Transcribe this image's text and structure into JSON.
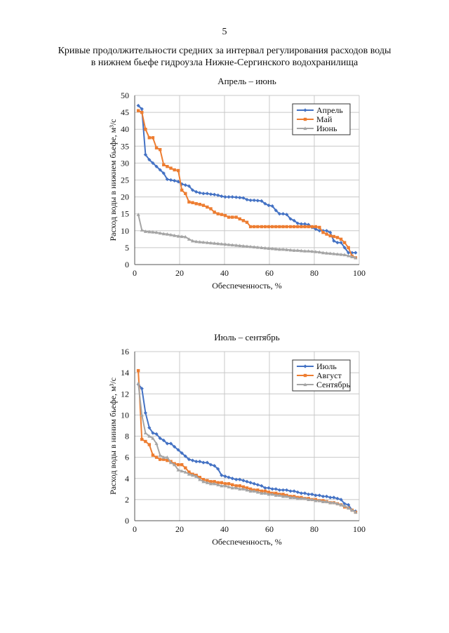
{
  "page": {
    "number": "5",
    "heading_line1": "Кривые продолжительности средних за интервал регулирования расходов воды",
    "heading_line2": "в нижнем бьефе гидроузла Нижне-Сергинского водохранилища"
  },
  "colors": {
    "blue": "#4472C4",
    "orange": "#ED7D31",
    "gray": "#A5A5A5",
    "grid": "#C8C8C8"
  },
  "chart_data": [
    {
      "type": "line",
      "title": "Апрель – июнь",
      "xlabel": "Обеспеченность, %",
      "ylabel": "Расход воды в нижнем бьефе, м³/с",
      "xlim": [
        0,
        100
      ],
      "ylim": [
        0,
        50
      ],
      "xticks": [
        "0",
        "20",
        "40",
        "60",
        "80",
        "100"
      ],
      "yticks": [
        "0",
        "5",
        "10",
        "15",
        "20",
        "25",
        "30",
        "35",
        "40",
        "45",
        "50"
      ],
      "grid": true,
      "legend_position": "top-right",
      "series": [
        {
          "name": "Апрель",
          "color": "#4472C4",
          "marker": "diamond",
          "x": [
            1.6,
            3.2,
            4.8,
            6.5,
            8.1,
            9.7,
            11.3,
            12.9,
            14.5,
            16.1,
            17.7,
            19.4,
            21.0,
            22.6,
            24.2,
            25.8,
            27.4,
            29.0,
            30.6,
            32.3,
            33.9,
            35.5,
            37.1,
            38.7,
            40.3,
            41.9,
            43.5,
            45.2,
            46.8,
            48.4,
            50.0,
            51.6,
            53.2,
            54.8,
            56.5,
            58.1,
            59.7,
            61.3,
            62.9,
            64.5,
            66.1,
            67.7,
            69.4,
            71.0,
            72.6,
            74.2,
            75.8,
            77.4,
            79.0,
            80.6,
            82.3,
            83.9,
            85.5,
            87.1,
            88.7,
            90.3,
            91.9,
            93.5,
            95.2,
            96.8,
            98.4
          ],
          "y": [
            47,
            46,
            32.5,
            31,
            30,
            29,
            28,
            27,
            25.2,
            25,
            24.8,
            24.5,
            23.8,
            23.5,
            23.2,
            22,
            21.5,
            21.2,
            21.0,
            21.0,
            20.8,
            20.7,
            20.5,
            20.2,
            20.0,
            20.0,
            20.0,
            19.9,
            19.8,
            19.7,
            19.2,
            19.0,
            19.0,
            18.9,
            18.8,
            18.0,
            17.5,
            17.3,
            16.0,
            15.0,
            15.0,
            14.8,
            13.5,
            13.0,
            12.2,
            12.0,
            12.0,
            11.8,
            11.0,
            10.5,
            10.0,
            10.0,
            10.0,
            9.5,
            7.0,
            6.5,
            6.5,
            5.0,
            3.5,
            3.5,
            3.5
          ]
        },
        {
          "name": "Май",
          "color": "#ED7D31",
          "marker": "square",
          "x": [
            1.6,
            3.2,
            4.8,
            6.5,
            8.1,
            9.7,
            11.3,
            12.9,
            14.5,
            16.1,
            17.7,
            19.4,
            21.0,
            22.6,
            24.2,
            25.8,
            27.4,
            29.0,
            30.6,
            32.3,
            33.9,
            35.5,
            37.1,
            38.7,
            40.3,
            41.9,
            43.5,
            45.2,
            46.8,
            48.4,
            50.0,
            51.6,
            53.2,
            54.8,
            56.5,
            58.1,
            59.7,
            61.3,
            62.9,
            64.5,
            66.1,
            67.7,
            69.4,
            71.0,
            72.6,
            74.2,
            75.8,
            77.4,
            79.0,
            80.6,
            82.3,
            83.9,
            85.5,
            87.1,
            88.7,
            90.3,
            91.9,
            93.5,
            95.2,
            96.8,
            98.4
          ],
          "y": [
            45.5,
            45,
            40,
            37.5,
            37.5,
            34.5,
            34.0,
            29.5,
            29.0,
            28.5,
            28.0,
            27.8,
            22,
            21,
            18.5,
            18.3,
            18.0,
            17.8,
            17.5,
            17.0,
            16.5,
            15.5,
            15.0,
            14.8,
            14.5,
            14.0,
            14.0,
            14.0,
            13.5,
            13.0,
            12.5,
            11.2,
            11.2,
            11.2,
            11.2,
            11.2,
            11.2,
            11.2,
            11.2,
            11.2,
            11.2,
            11.2,
            11.2,
            11.2,
            11.2,
            11.2,
            11.2,
            11.2,
            11.2,
            11.2,
            11.0,
            9.5,
            9.0,
            8.5,
            8.3,
            8.0,
            7.5,
            6.5,
            5.0,
            2.5,
            2.0
          ]
        },
        {
          "name": "Июнь",
          "color": "#A5A5A5",
          "marker": "triangle",
          "x": [
            1.6,
            3.2,
            4.8,
            6.5,
            8.1,
            9.7,
            11.3,
            12.9,
            14.5,
            16.1,
            17.7,
            19.4,
            21.0,
            22.6,
            24.2,
            25.8,
            27.4,
            29.0,
            30.6,
            32.3,
            33.9,
            35.5,
            37.1,
            38.7,
            40.3,
            41.9,
            43.5,
            45.2,
            46.8,
            48.4,
            50.0,
            51.6,
            53.2,
            54.8,
            56.5,
            58.1,
            59.7,
            61.3,
            62.9,
            64.5,
            66.1,
            67.7,
            69.4,
            71.0,
            72.6,
            74.2,
            75.8,
            77.4,
            79.0,
            80.6,
            82.3,
            83.9,
            85.5,
            87.1,
            88.7,
            90.3,
            91.9,
            93.5,
            95.2,
            96.8,
            98.4
          ],
          "y": [
            14.8,
            10.2,
            9.8,
            9.7,
            9.6,
            9.5,
            9.3,
            9.1,
            9.0,
            8.8,
            8.6,
            8.4,
            8.3,
            8.2,
            7.5,
            7.0,
            6.8,
            6.7,
            6.6,
            6.5,
            6.4,
            6.3,
            6.2,
            6.1,
            6.0,
            5.9,
            5.8,
            5.7,
            5.6,
            5.5,
            5.4,
            5.3,
            5.2,
            5.1,
            5.0,
            4.9,
            4.8,
            4.7,
            4.6,
            4.5,
            4.5,
            4.4,
            4.3,
            4.2,
            4.2,
            4.1,
            4.0,
            4.0,
            3.9,
            3.8,
            3.7,
            3.5,
            3.4,
            3.3,
            3.2,
            3.1,
            3.0,
            2.9,
            2.6,
            2.3,
            2.0
          ]
        }
      ]
    },
    {
      "type": "line",
      "title": "Июль – сентябрь",
      "xlabel": "Обеспеченность, %",
      "ylabel": "Расход воды в ниним бьефе, м³/с",
      "xlim": [
        0,
        100
      ],
      "ylim": [
        0,
        16
      ],
      "xticks": [
        "0",
        "20",
        "40",
        "60",
        "80",
        "100"
      ],
      "yticks": [
        "0",
        "2",
        "4",
        "6",
        "8",
        "10",
        "12",
        "14",
        "16"
      ],
      "grid": true,
      "legend_position": "top-right",
      "series": [
        {
          "name": "Июль",
          "color": "#4472C4",
          "marker": "diamond",
          "x": [
            1.6,
            3.2,
            4.8,
            6.5,
            8.1,
            9.7,
            11.3,
            12.9,
            14.5,
            16.1,
            17.7,
            19.4,
            21.0,
            22.6,
            24.2,
            25.8,
            27.4,
            29.0,
            30.6,
            32.3,
            33.9,
            35.5,
            37.1,
            38.7,
            40.3,
            41.9,
            43.5,
            45.2,
            46.8,
            48.4,
            50.0,
            51.6,
            53.2,
            54.8,
            56.5,
            58.1,
            59.7,
            61.3,
            62.9,
            64.5,
            66.1,
            67.7,
            69.4,
            71.0,
            72.6,
            74.2,
            75.8,
            77.4,
            79.0,
            80.6,
            82.3,
            83.9,
            85.5,
            87.1,
            88.7,
            90.3,
            91.9,
            93.5,
            95.2,
            96.8,
            98.4
          ],
          "y": [
            12.9,
            12.5,
            10.2,
            8.8,
            8.3,
            8.2,
            7.8,
            7.6,
            7.3,
            7.3,
            7.0,
            6.7,
            6.4,
            6.1,
            5.8,
            5.7,
            5.6,
            5.6,
            5.5,
            5.5,
            5.3,
            5.2,
            4.9,
            4.3,
            4.2,
            4.1,
            4.0,
            3.9,
            3.9,
            3.8,
            3.7,
            3.6,
            3.5,
            3.4,
            3.3,
            3.1,
            3.1,
            3.0,
            3.0,
            2.9,
            2.9,
            2.9,
            2.8,
            2.8,
            2.7,
            2.6,
            2.6,
            2.5,
            2.5,
            2.4,
            2.4,
            2.3,
            2.3,
            2.2,
            2.2,
            2.1,
            2.0,
            1.6,
            1.5,
            1.0,
            0.9
          ]
        },
        {
          "name": "Август",
          "color": "#ED7D31",
          "marker": "square",
          "x": [
            1.6,
            3.2,
            4.8,
            6.5,
            8.1,
            9.7,
            11.3,
            12.9,
            14.5,
            16.1,
            17.7,
            19.4,
            21.0,
            22.6,
            24.2,
            25.8,
            27.4,
            29.0,
            30.6,
            32.3,
            33.9,
            35.5,
            37.1,
            38.7,
            40.3,
            41.9,
            43.5,
            45.2,
            46.8,
            48.4,
            50.0,
            51.6,
            53.2,
            54.8,
            56.5,
            58.1,
            59.7,
            61.3,
            62.9,
            64.5,
            66.1,
            67.7,
            69.4,
            71.0,
            72.6,
            74.2,
            75.8,
            77.4,
            79.0,
            80.6,
            82.3,
            83.9,
            85.5,
            87.1,
            88.7,
            90.3,
            91.9,
            93.5,
            95.2,
            96.8,
            98.4
          ],
          "y": [
            14.2,
            7.7,
            7.5,
            7.2,
            6.2,
            6.0,
            5.8,
            5.8,
            5.7,
            5.6,
            5.4,
            5.3,
            5.3,
            5.0,
            4.6,
            4.4,
            4.3,
            4.1,
            3.9,
            3.8,
            3.7,
            3.7,
            3.6,
            3.6,
            3.5,
            3.5,
            3.4,
            3.3,
            3.3,
            3.2,
            3.1,
            3.0,
            2.9,
            2.9,
            2.8,
            2.8,
            2.7,
            2.6,
            2.6,
            2.5,
            2.5,
            2.4,
            2.3,
            2.3,
            2.2,
            2.2,
            2.1,
            2.1,
            2.0,
            2.0,
            1.9,
            1.9,
            1.8,
            1.7,
            1.7,
            1.6,
            1.5,
            1.3,
            1.2,
            1.0,
            0.8
          ]
        },
        {
          "name": "Сентябрь",
          "color": "#A5A5A5",
          "marker": "triangle",
          "x": [
            1.6,
            3.2,
            4.8,
            6.5,
            8.1,
            9.7,
            11.3,
            12.9,
            14.5,
            16.1,
            17.7,
            19.4,
            21.0,
            22.6,
            24.2,
            25.8,
            27.4,
            29.0,
            30.6,
            32.3,
            33.9,
            35.5,
            37.1,
            38.7,
            40.3,
            41.9,
            43.5,
            45.2,
            46.8,
            48.4,
            50.0,
            51.6,
            53.2,
            54.8,
            56.5,
            58.1,
            59.7,
            61.3,
            62.9,
            64.5,
            66.1,
            67.7,
            69.4,
            71.0,
            72.6,
            74.2,
            75.8,
            77.4,
            79.0,
            80.6,
            82.3,
            83.9,
            85.5,
            87.1,
            88.7,
            90.3,
            91.9,
            93.5,
            95.2,
            96.8,
            98.4
          ],
          "y": [
            13.0,
            10.0,
            8.3,
            8.0,
            7.8,
            7.3,
            6.2,
            6.0,
            6.0,
            5.5,
            5.3,
            4.8,
            4.7,
            4.6,
            4.4,
            4.3,
            4.2,
            3.9,
            3.7,
            3.6,
            3.5,
            3.5,
            3.4,
            3.3,
            3.3,
            3.2,
            3.1,
            3.1,
            3.0,
            3.0,
            2.9,
            2.8,
            2.8,
            2.7,
            2.6,
            2.6,
            2.5,
            2.5,
            2.4,
            2.4,
            2.3,
            2.3,
            2.2,
            2.2,
            2.1,
            2.1,
            2.1,
            2.0,
            2.0,
            1.9,
            1.9,
            1.8,
            1.8,
            1.7,
            1.7,
            1.6,
            1.5,
            1.4,
            1.2,
            1.0,
            0.8
          ]
        }
      ]
    }
  ]
}
